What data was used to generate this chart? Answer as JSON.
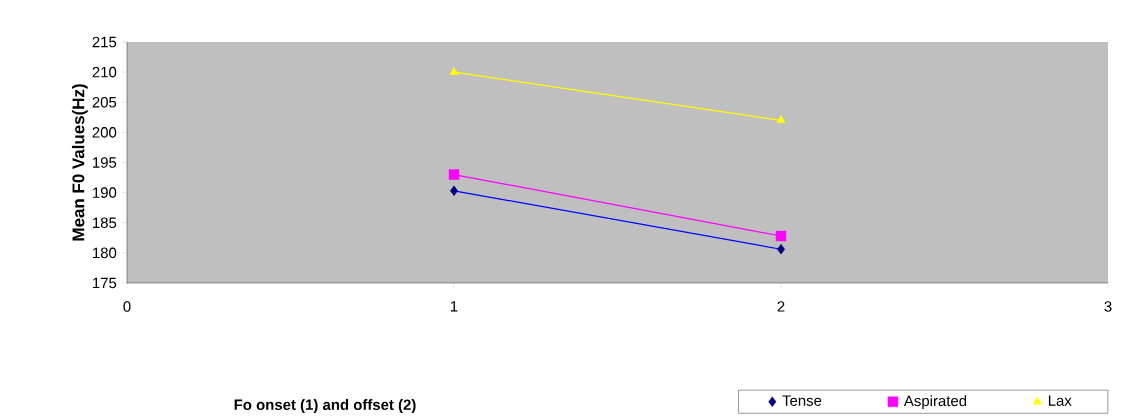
{
  "chart_data": {
    "type": "scatter",
    "ylabel": "Mean F0 Values(Hz)",
    "annotations": [
      "Fo onset (1) and offset (2)"
    ],
    "x": [
      1,
      2
    ],
    "xlim": [
      0,
      3
    ],
    "xticks": [
      0,
      1,
      2,
      3
    ],
    "ylim": [
      175,
      215
    ],
    "yticks": [
      175,
      180,
      185,
      190,
      195,
      200,
      205,
      210,
      215
    ],
    "legend": "bottom right",
    "series": [
      {
        "name": "Tense",
        "color": "#000080",
        "marker": "diamond",
        "values": [
          190.3,
          180.6
        ]
      },
      {
        "name": "Aspirated",
        "color": "#ff00ff",
        "marker": "square",
        "values": [
          193,
          182.8
        ]
      },
      {
        "name": "Lax",
        "color": "#ffff00",
        "marker": "triangle",
        "values": [
          210,
          202
        ]
      },
      {
        "type": "line",
        "color": "#0000ff",
        "marker": "none",
        "values": [
          190.3,
          180.6
        ]
      },
      {
        "type": "line",
        "color": "#ff00ff",
        "marker": "none",
        "values": [
          193,
          182.8
        ]
      },
      {
        "type": "line",
        "color": "#ffff00",
        "marker": "none",
        "values": [
          210,
          202
        ]
      }
    ]
  }
}
